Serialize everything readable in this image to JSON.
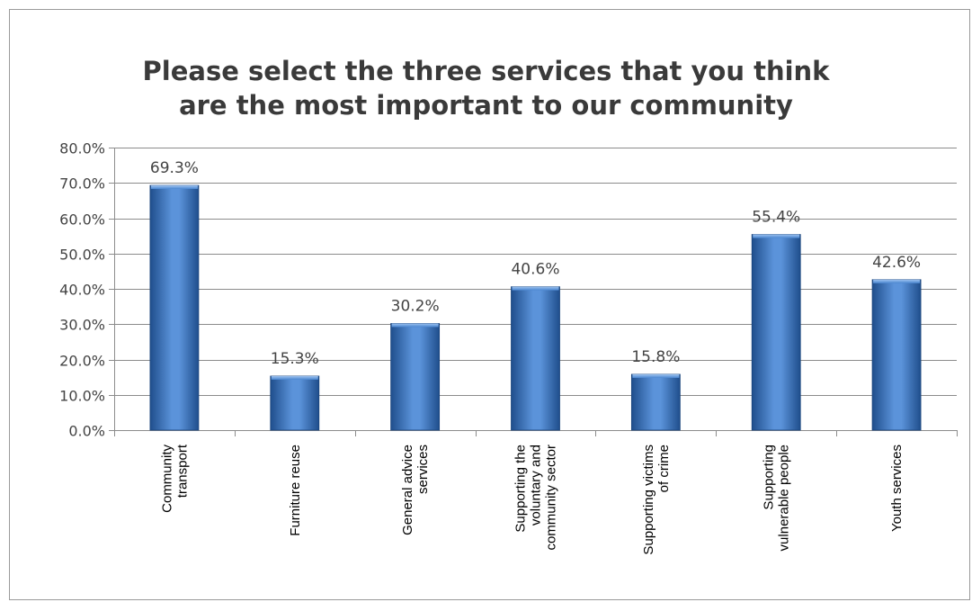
{
  "chart_data": {
    "type": "bar",
    "title_lines": [
      "Please select the three services that you think",
      "are the most important to our community"
    ],
    "categories": [
      [
        "Community",
        "transport"
      ],
      [
        "Furniture reuse"
      ],
      [
        "General advice",
        "services"
      ],
      [
        "Supporting the",
        "voluntary and",
        "community sector"
      ],
      [
        "Supporting victims",
        "of crime"
      ],
      [
        "Supporting",
        "vulnerable people"
      ],
      [
        "Youth services"
      ]
    ],
    "values": [
      69.3,
      15.3,
      30.2,
      40.6,
      15.8,
      55.4,
      42.6
    ],
    "data_labels": [
      "69.3%",
      "15.3%",
      "30.2%",
      "40.6%",
      "15.8%",
      "55.4%",
      "42.6%"
    ],
    "ylim": [
      0,
      80
    ],
    "yticks": [
      0,
      10,
      20,
      30,
      40,
      50,
      60,
      70,
      80
    ],
    "ytick_labels": [
      "0.0%",
      "10.0%",
      "20.0%",
      "30.0%",
      "40.0%",
      "50.0%",
      "60.0%",
      "70.0%",
      "80.0%"
    ],
    "grid": true,
    "legend": "none",
    "colors": {
      "bar_dark": "#1f4e8c",
      "bar_mid": "#4a86d0",
      "bar_light": "#8fb7ea",
      "gridline": "#8c8c8c"
    }
  }
}
